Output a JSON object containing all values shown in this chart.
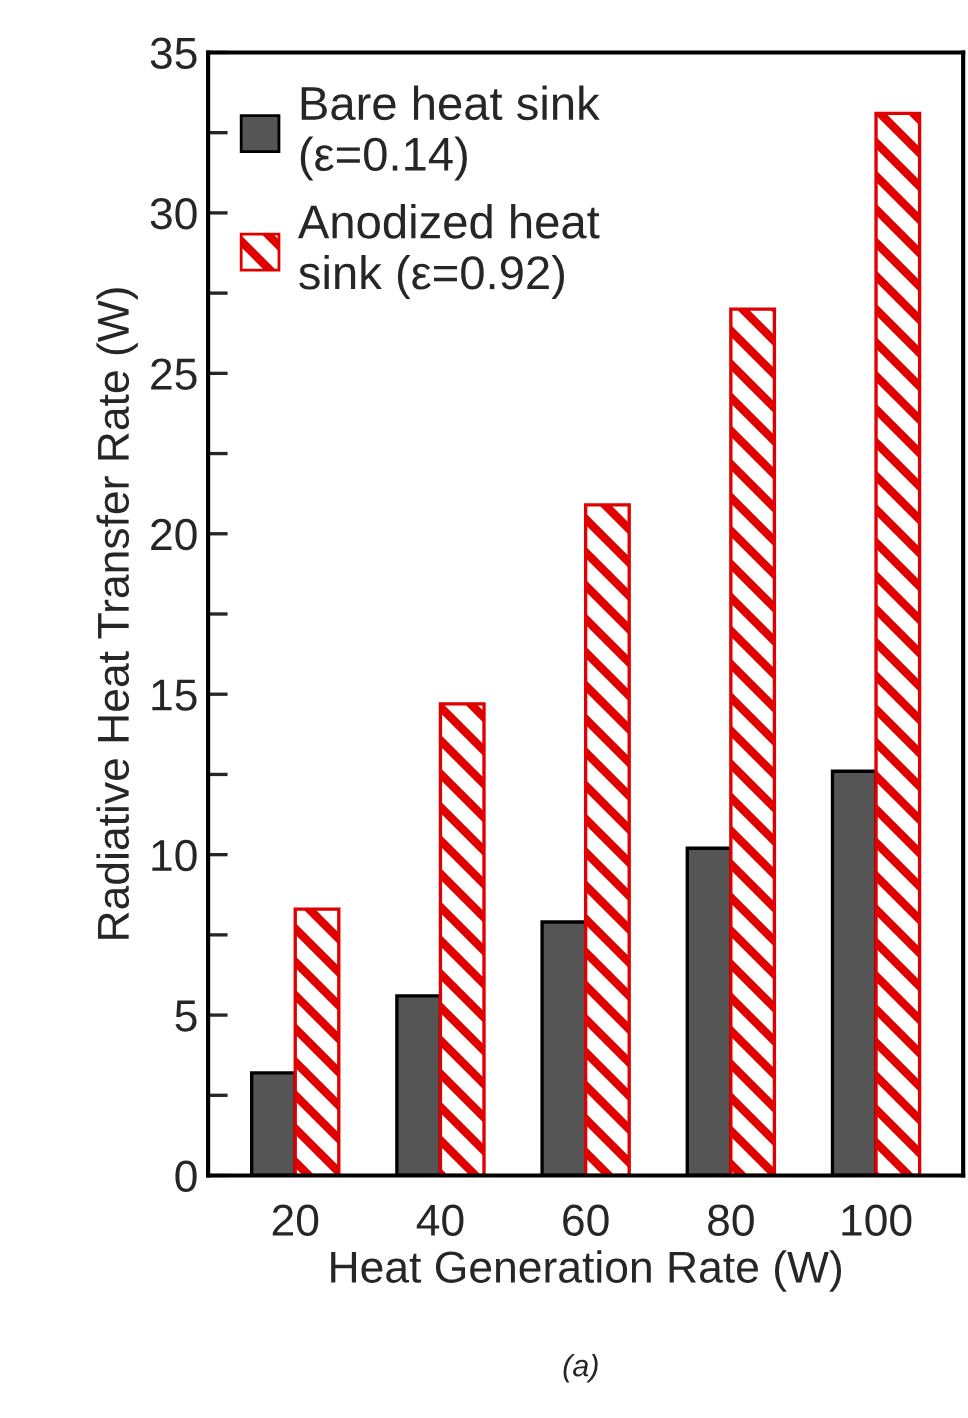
{
  "chart_data": {
    "type": "bar",
    "xlabel": "Heat Generation Rate (W)",
    "ylabel": "Radiative Heat Transfer Rate (W)",
    "categories": [
      "20",
      "40",
      "60",
      "80",
      "100"
    ],
    "series": [
      {
        "name": "Bare heat sink\n(ε=0.14)",
        "color": "#555555",
        "values": [
          3.2,
          5.6,
          7.9,
          10.2,
          12.6
        ]
      },
      {
        "name": "Anodized heat\nsink (ε=0.92)",
        "color": "#e00000",
        "values": [
          8.3,
          14.7,
          20.9,
          27.0,
          33.1
        ]
      }
    ],
    "ylim": [
      0,
      35
    ],
    "yticks": [
      0,
      {
        "value": 2.5,
        "label": null
      },
      5,
      {
        "value": 7.5,
        "label": null
      },
      10,
      {
        "value": 12.5,
        "label": null
      },
      15,
      {
        "value": 17.5,
        "label": null
      },
      20,
      {
        "value": 22.5,
        "label": null
      },
      25,
      {
        "value": 27.5,
        "label": null
      },
      30,
      {
        "value": 32.5,
        "label": null
      },
      35
    ],
    "grid": false,
    "legend": "top left",
    "annotations": [
      "(a)"
    ]
  }
}
